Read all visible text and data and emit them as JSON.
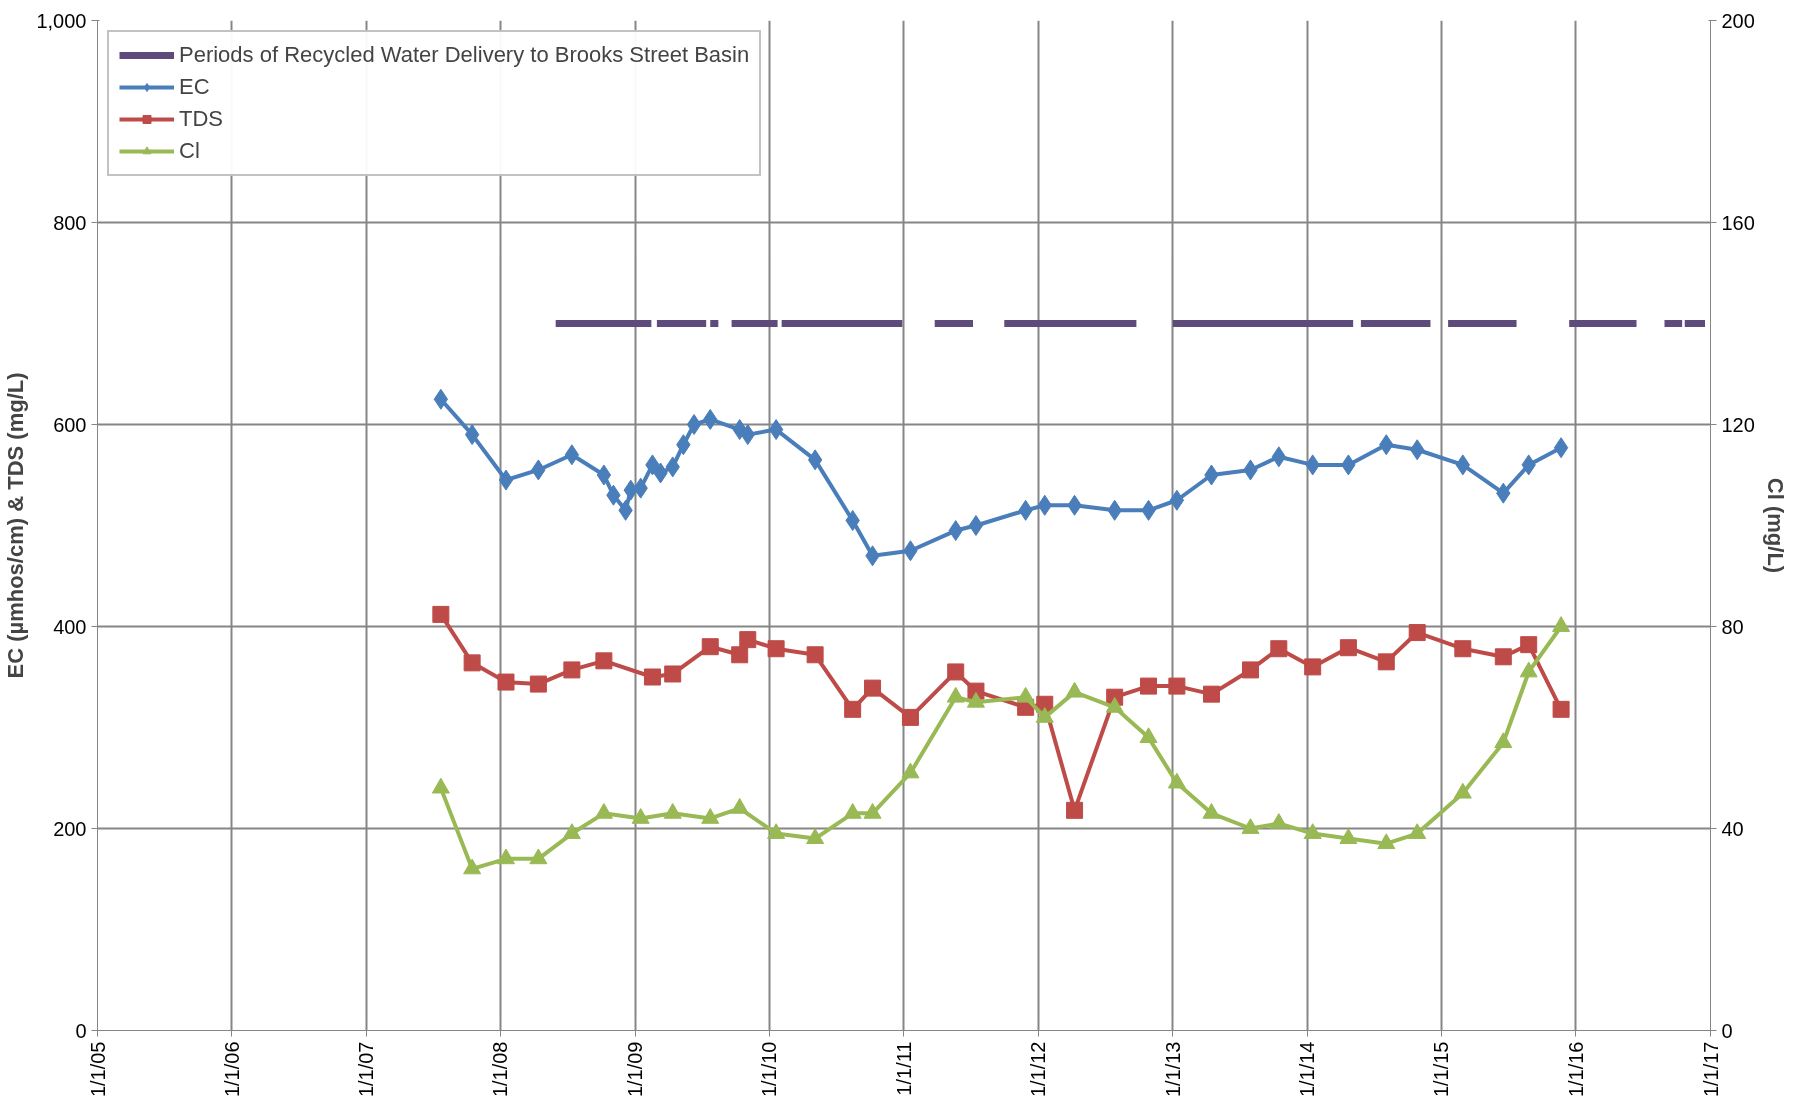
{
  "chart_data": {
    "type": "line",
    "ylabel": "EC (µmhos/cm) & TDS (mg/L)",
    "y2label": "Cl (mg/L)",
    "xlim": [
      "2005-01-01",
      "2017-01-01"
    ],
    "xticks": [
      {
        "value": "2005-01-01",
        "label": "1/1/05"
      },
      {
        "value": "2006-01-01",
        "label": "1/1/06"
      },
      {
        "value": "2007-01-01",
        "label": "1/1/07"
      },
      {
        "value": "2008-01-01",
        "label": "1/1/08"
      },
      {
        "value": "2009-01-01",
        "label": "1/1/09"
      },
      {
        "value": "2010-01-01",
        "label": "1/1/10"
      },
      {
        "value": "2011-01-01",
        "label": "1/1/11"
      },
      {
        "value": "2012-01-01",
        "label": "1/1/12"
      },
      {
        "value": "2013-01-01",
        "label": "1/1/13"
      },
      {
        "value": "2014-01-01",
        "label": "1/1/14"
      },
      {
        "value": "2015-01-01",
        "label": "1/1/15"
      },
      {
        "value": "2016-01-01",
        "label": "1/1/16"
      },
      {
        "value": "2017-01-01",
        "label": "1/1/17"
      }
    ],
    "ylim": [
      0,
      1000
    ],
    "yticks": [
      0,
      200,
      400,
      600,
      800,
      {
        "value": 1000,
        "label": "1,000"
      }
    ],
    "y2lim": [
      0,
      200
    ],
    "y2ticks": [
      0,
      40,
      80,
      120,
      160,
      200
    ],
    "grid": true,
    "legend": "top left",
    "series": [
      {
        "name": "Periods of Recycled Water Delivery to Brooks Street Basin",
        "color": "#5f4b7b",
        "marker": "none",
        "x": [
          "2008-05-30",
          "2009-02-14",
          "2009-02-20",
          "2009-03-01",
          "2009-07-13",
          "2009-07-18",
          "2009-07-24",
          "2009-08-15",
          "2009-09-01",
          "2009-09-20",
          "2010-01-23",
          "2010-01-28",
          "2010-02-03",
          "2010-12-28",
          "2011-02-10",
          "2011-03-26",
          "2011-07-08",
          "2011-08-20",
          "2011-10-01",
          "2012-09-24",
          "2012-11-10",
          "2013-01-01",
          "2014-05-06",
          "2014-05-16",
          "2014-05-27",
          "2014-12-02",
          "2014-12-25",
          "2015-01-19",
          "2015-07-24",
          "2015-10-01",
          "2015-12-14",
          "2016-06-14",
          "2016-07-20",
          "2016-08-29",
          "2016-10-16",
          "2016-10-20",
          "2016-10-23",
          "2016-12-17"
        ],
        "values": [
          700,
          700,
          null,
          700,
          700,
          null,
          700,
          700,
          null,
          700,
          700,
          null,
          700,
          700,
          null,
          700,
          700,
          null,
          700,
          700,
          null,
          700,
          700,
          null,
          700,
          700,
          null,
          700,
          700,
          null,
          700,
          700,
          null,
          700,
          700,
          null,
          700,
          700
        ]
      },
      {
        "name": "EC",
        "color": "#4a7ebb",
        "marker": "diamond",
        "x": [
          "2007-07-23",
          "2007-10-16",
          "2008-01-16",
          "2008-04-13",
          "2008-07-13",
          "2008-10-08",
          "2008-11-03",
          "2008-12-06",
          "2008-12-20",
          "2009-01-16",
          "2009-02-17",
          "2009-03-11",
          "2009-04-13",
          "2009-05-12",
          "2009-06-10",
          "2009-07-24",
          "2009-10-12",
          "2009-11-03",
          "2010-01-19",
          "2010-05-05",
          "2010-08-15",
          "2010-10-08",
          "2011-01-19",
          "2011-05-22",
          "2011-07-16",
          "2011-11-28",
          "2012-01-19",
          "2012-04-09",
          "2012-07-27",
          "2012-10-27",
          "2013-01-12",
          "2013-04-16",
          "2013-07-31",
          "2013-10-16",
          "2014-01-16",
          "2014-04-23",
          "2014-08-04",
          "2014-10-27",
          "2015-02-28",
          "2015-06-18",
          "2015-08-26",
          "2015-11-22"
        ],
        "values": [
          625,
          590,
          545,
          555,
          570,
          550,
          530,
          515,
          535,
          537,
          560,
          552,
          558,
          580,
          600,
          605,
          595,
          590,
          595,
          565,
          505,
          470,
          475,
          495,
          500,
          515,
          520,
          520,
          515,
          515,
          525,
          550,
          555,
          568,
          560,
          560,
          580,
          575,
          560,
          532,
          560,
          577
        ]
      },
      {
        "name": "TDS",
        "color": "#be4b48",
        "marker": "square",
        "x": [
          "2007-07-23",
          "2007-10-16",
          "2008-01-16",
          "2008-04-13",
          "2008-07-13",
          "2008-10-08",
          "2009-02-17",
          "2009-04-13",
          "2009-07-24",
          "2009-10-12",
          "2009-11-03",
          "2010-01-19",
          "2010-05-05",
          "2010-08-15",
          "2010-10-08",
          "2011-01-19",
          "2011-05-22",
          "2011-07-16",
          "2011-11-28",
          "2012-01-19",
          "2012-04-09",
          "2012-07-27",
          "2012-10-27",
          "2013-01-12",
          "2013-04-16",
          "2013-07-31",
          "2013-10-16",
          "2014-01-16",
          "2014-04-23",
          "2014-08-04",
          "2014-10-27",
          "2015-02-28",
          "2015-06-18",
          "2015-08-26",
          "2015-11-22"
        ],
        "values": [
          412,
          364,
          345,
          343,
          357,
          366,
          350,
          353,
          380,
          372,
          387,
          378,
          372,
          318,
          339,
          310,
          355,
          336,
          320,
          323,
          218,
          330,
          341,
          341,
          333,
          357,
          378,
          360,
          379,
          365,
          394,
          378,
          370,
          382,
          318
        ]
      },
      {
        "name": "Cl",
        "color": "#98b954",
        "marker": "triangle",
        "axis": "y2",
        "x": [
          "2007-07-23",
          "2007-10-16",
          "2008-01-16",
          "2008-04-13",
          "2008-07-13",
          "2008-10-08",
          "2009-01-16",
          "2009-04-13",
          "2009-07-24",
          "2009-10-12",
          "2010-01-19",
          "2010-05-05",
          "2010-08-15",
          "2010-10-08",
          "2011-01-19",
          "2011-05-22",
          "2011-07-16",
          "2011-11-28",
          "2012-01-19",
          "2012-04-09",
          "2012-07-27",
          "2012-10-27",
          "2013-01-12",
          "2013-04-16",
          "2013-07-31",
          "2013-10-16",
          "2014-01-16",
          "2014-04-23",
          "2014-08-04",
          "2014-10-27",
          "2015-02-28",
          "2015-06-18",
          "2015-08-26",
          "2015-11-22"
        ],
        "values": [
          48,
          32,
          34,
          34,
          39,
          43,
          42,
          43,
          42,
          44,
          39,
          38,
          43,
          43,
          51,
          66,
          65,
          66,
          62,
          67,
          64,
          58,
          49,
          43,
          40,
          41,
          39,
          38,
          37,
          39,
          47,
          57,
          71,
          80
        ]
      }
    ]
  }
}
